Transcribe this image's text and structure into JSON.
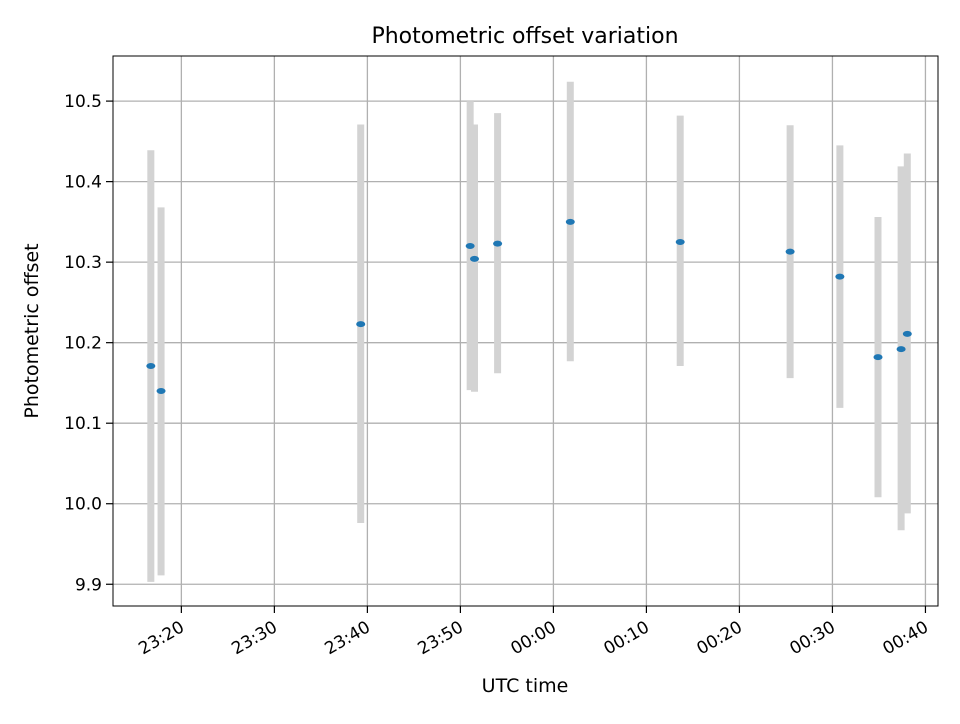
{
  "chart_data": {
    "type": "scatter",
    "title": "Photometric offset variation",
    "xlabel": "UTC time",
    "ylabel": "Photometric offset",
    "x_is_time": true,
    "xlim": [
      "23:12:39",
      "00:41:21"
    ],
    "ylim": [
      9.873,
      10.556
    ],
    "grid": true,
    "x_ticks": [
      "23:20",
      "23:30",
      "23:40",
      "23:50",
      "00:00",
      "00:10",
      "00:20",
      "00:30",
      "00:40"
    ],
    "y_ticks": [
      "9.9",
      "10.0",
      "10.1",
      "10.2",
      "10.3",
      "10.4",
      "10.5"
    ],
    "colors": {
      "marker": "#1f77b4",
      "errorbar": "#d3d3d3",
      "grid": "#b0b0b0"
    },
    "series": [
      {
        "points": [
          {
            "x": "23:16:43",
            "y": 10.171,
            "low": 9.903,
            "high": 10.439
          },
          {
            "x": "23:17:49",
            "y": 10.14,
            "low": 9.911,
            "high": 10.368
          },
          {
            "x": "23:39:17",
            "y": 10.223,
            "low": 9.976,
            "high": 10.471
          },
          {
            "x": "23:51:03",
            "y": 10.32,
            "low": 10.141,
            "high": 10.5
          },
          {
            "x": "23:51:31",
            "y": 10.304,
            "low": 10.139,
            "high": 10.471
          },
          {
            "x": "23:54:00",
            "y": 10.323,
            "low": 10.162,
            "high": 10.485
          },
          {
            "x": "00:01:49",
            "y": 10.35,
            "low": 10.177,
            "high": 10.524
          },
          {
            "x": "00:13:38",
            "y": 10.325,
            "low": 10.171,
            "high": 10.482
          },
          {
            "x": "00:25:27",
            "y": 10.313,
            "low": 10.156,
            "high": 10.47
          },
          {
            "x": "00:30:48",
            "y": 10.282,
            "low": 10.119,
            "high": 10.445
          },
          {
            "x": "00:34:54",
            "y": 10.182,
            "low": 10.008,
            "high": 10.356
          },
          {
            "x": "00:37:23",
            "y": 10.192,
            "low": 9.967,
            "high": 10.419
          },
          {
            "x": "00:38:03",
            "y": 10.211,
            "low": 9.988,
            "high": 10.435
          }
        ]
      }
    ]
  }
}
